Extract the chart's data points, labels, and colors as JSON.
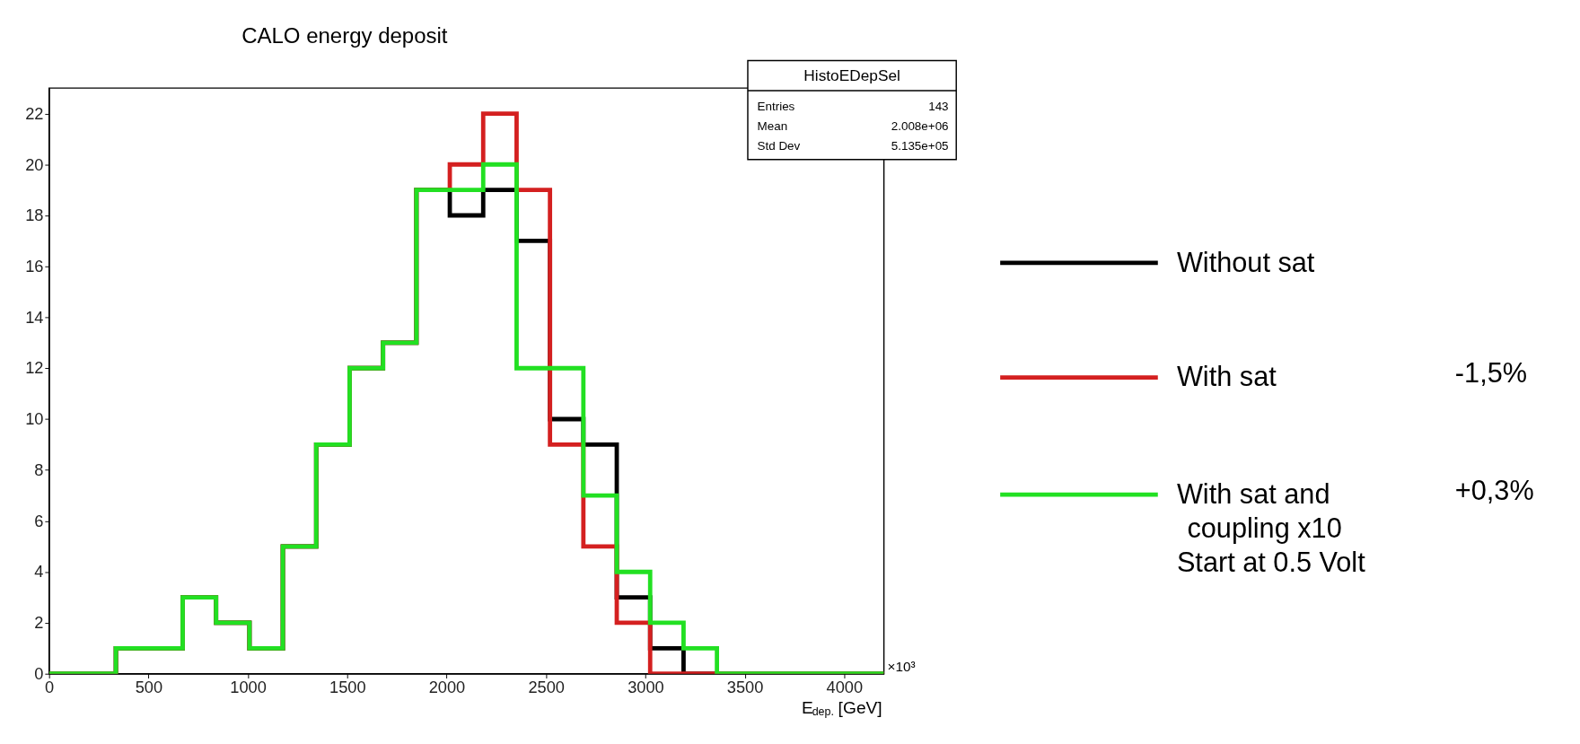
{
  "chart_data": {
    "type": "histogram",
    "title": "CALO energy deposit",
    "xlabel": "E$_{dep.}$ [GeV]",
    "bins": [
      0,
      168,
      336,
      504,
      672,
      840,
      1008,
      1176,
      1344,
      1512,
      1680,
      1848,
      2016,
      2184,
      2352,
      2520,
      2688,
      2856,
      3024,
      3192,
      3360,
      3528,
      3696,
      3864,
      4032,
      4200
    ],
    "series": [
      {
        "name": "Without sat",
        "color": "#000000",
        "values": [
          0,
          0,
          1,
          1,
          3,
          2,
          1,
          5,
          9,
          12,
          13,
          19,
          18,
          19,
          17,
          10,
          9,
          3,
          1,
          0,
          0,
          0,
          0,
          0,
          0
        ]
      },
      {
        "name": "With sat",
        "color": "#d42020",
        "values": [
          0,
          0,
          1,
          1,
          3,
          2,
          1,
          5,
          9,
          12,
          13,
          19,
          20,
          22,
          19,
          9,
          5,
          2,
          0,
          0,
          0,
          0,
          0,
          0,
          0
        ]
      },
      {
        "name": "With sat and coupling x10 Start at 0.5 Volt",
        "color": "#22e022",
        "values": [
          0,
          0,
          1,
          1,
          3,
          2,
          1,
          5,
          9,
          12,
          13,
          19,
          19,
          20,
          12,
          12,
          7,
          4,
          2,
          1,
          0,
          0,
          0,
          0,
          0
        ]
      }
    ],
    "xlim": [
      0,
      4200
    ],
    "xticks": [
      0,
      500,
      1000,
      1500,
      2000,
      2500,
      3000,
      3500,
      4000
    ],
    "ylim": [
      0,
      23
    ],
    "yticks": [
      0,
      2,
      4,
      6,
      8,
      10,
      12,
      14,
      16,
      18,
      20,
      22
    ],
    "annotations": [
      "HistoEDepSel",
      "Entries",
      "143",
      "Mean",
      "2.008e+06",
      "Std Dev",
      "5.135e+05",
      "×10³",
      "-1,5%",
      "+0,3%"
    ],
    "grid": false,
    "legend": "right"
  }
}
